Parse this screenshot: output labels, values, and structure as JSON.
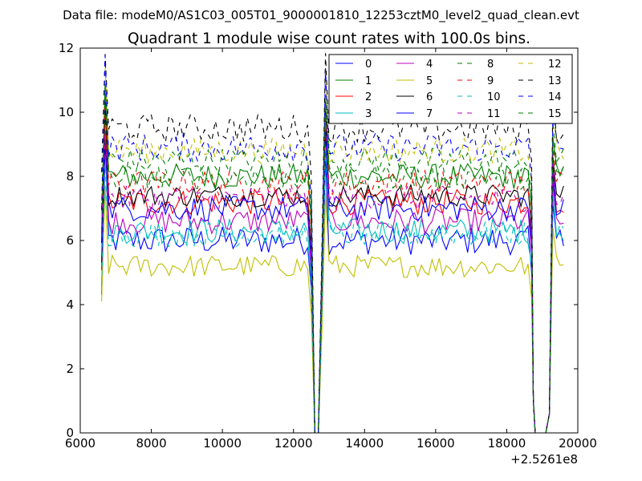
{
  "suptitle": "Data file: modeM0/AS1C03_005T01_9000001810_12253cztM0_level2_quad_clean.evt",
  "chart_data": {
    "type": "line",
    "title": "Quadrant 1 module wise count rates with 100.0s bins.",
    "xlabel": "",
    "ylabel": "",
    "x_offset_label": "+2.5261e8",
    "xlim": [
      6000,
      20000
    ],
    "ylim": [
      0,
      12
    ],
    "xticks": [
      "6000",
      "8000",
      "10000",
      "12000",
      "14000",
      "16000",
      "18000",
      "20000"
    ],
    "yticks": [
      "0",
      "2",
      "4",
      "6",
      "8",
      "10",
      "12"
    ],
    "grid": false,
    "legend_position": "top-right",
    "segments": [
      [
        6600,
        12400
      ],
      [
        12900,
        18600
      ],
      [
        19400,
        19600
      ]
    ],
    "gaps": [
      [
        12600,
        12700
      ],
      [
        18800,
        19100
      ]
    ],
    "series": [
      {
        "name": "0",
        "color": "#0000ff",
        "dash": "solid",
        "level": 6.0,
        "noise": 0.45
      },
      {
        "name": "1",
        "color": "#008000",
        "dash": "solid",
        "level": 8.0,
        "noise": 0.4
      },
      {
        "name": "2",
        "color": "#ff0000",
        "dash": "solid",
        "level": 7.2,
        "noise": 0.4
      },
      {
        "name": "3",
        "color": "#00bfbf",
        "dash": "solid",
        "level": 6.3,
        "noise": 0.4
      },
      {
        "name": "4",
        "color": "#bf00bf",
        "dash": "solid",
        "level": 6.6,
        "noise": 0.4
      },
      {
        "name": "5",
        "color": "#bfbf00",
        "dash": "solid",
        "level": 5.2,
        "noise": 0.35
      },
      {
        "name": "6",
        "color": "#000000",
        "dash": "solid",
        "level": 7.4,
        "noise": 0.35
      },
      {
        "name": "7",
        "color": "#0000ff",
        "dash": "solid",
        "level": 7.0,
        "noise": 0.4
      },
      {
        "name": "8",
        "color": "#008000",
        "dash": "dashed",
        "level": 8.5,
        "noise": 0.4
      },
      {
        "name": "9",
        "color": "#ff0000",
        "dash": "dashed",
        "level": 7.8,
        "noise": 0.4
      },
      {
        "name": "10",
        "color": "#00bfbf",
        "dash": "dashed",
        "level": 6.2,
        "noise": 0.4
      },
      {
        "name": "11",
        "color": "#bf00bf",
        "dash": "dashed",
        "level": 7.3,
        "noise": 0.4
      },
      {
        "name": "12",
        "color": "#bfbf00",
        "dash": "dashed",
        "level": 8.8,
        "noise": 0.4
      },
      {
        "name": "13",
        "color": "#000000",
        "dash": "dashed",
        "level": 9.5,
        "noise": 0.45
      },
      {
        "name": "14",
        "color": "#0000ff",
        "dash": "dashed",
        "level": 8.9,
        "noise": 0.45
      },
      {
        "name": "15",
        "color": "#008000",
        "dash": "dashed",
        "level": 8.0,
        "noise": 0.4
      }
    ]
  }
}
